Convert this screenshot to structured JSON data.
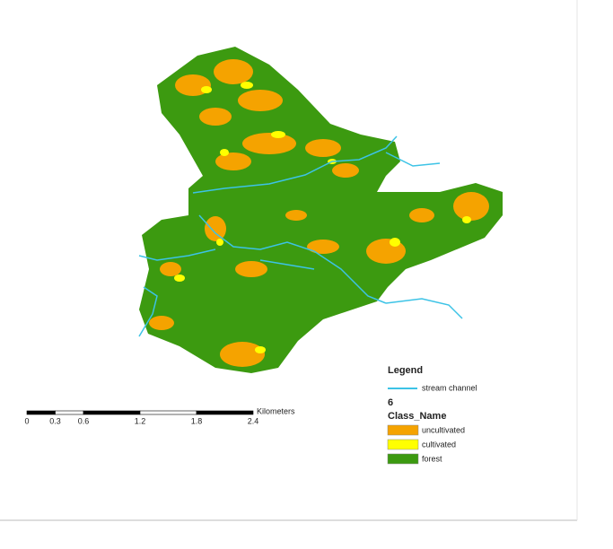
{
  "legend": {
    "title": "Legend",
    "items": [
      {
        "label": "stream channel",
        "color": "#3cc3e6",
        "kind": "line"
      }
    ],
    "layer_name": "6",
    "field_name": "Class_Name",
    "classes": [
      {
        "label": "uncultivated",
        "color": "#f5a300"
      },
      {
        "label": "cultivated",
        "color": "#ffff00"
      },
      {
        "label": "forest",
        "color": "#3c9a10"
      }
    ]
  },
  "scale_bar": {
    "unit": "Kilometers",
    "ticks": [
      0,
      0.3,
      0.6,
      1.2,
      1.8,
      2.4
    ]
  }
}
